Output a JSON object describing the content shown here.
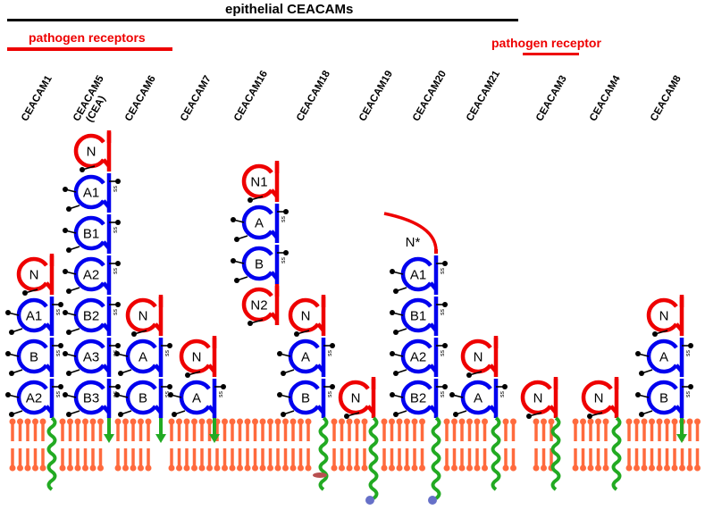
{
  "headers": {
    "epithelial": "epithelial CEACAMs",
    "pathogen_receptors": "pathogen receptors",
    "pathogen_receptor": "pathogen receptor"
  },
  "colors": {
    "n_domain": "#ee0000",
    "ig_domain": "#0000ee",
    "anchor": "#22aa22",
    "membrane": "#ff6a3d",
    "glycan": "#000000",
    "gpi_dot": "#6670c8",
    "ceacam18_tail": "#b85050"
  },
  "proteins": [
    {
      "name": "CEACAM1",
      "sub": "",
      "anchor": "transmembrane",
      "domains": [
        "N",
        "A1",
        "B",
        "A2"
      ]
    },
    {
      "name": "CEACAM5",
      "sub": "(CEA)",
      "anchor": "gpi",
      "domains": [
        "N",
        "A1",
        "B1",
        "A2",
        "B2",
        "A3",
        "B3"
      ]
    },
    {
      "name": "CEACAM6",
      "sub": "",
      "anchor": "gpi",
      "domains": [
        "N",
        "A",
        "B"
      ]
    },
    {
      "name": "CEACAM7",
      "sub": "",
      "anchor": "gpi",
      "domains": [
        "N",
        "A"
      ]
    },
    {
      "name": "CEACAM16",
      "sub": "",
      "anchor": "none",
      "domains": [
        "N1",
        "A",
        "B",
        "N2"
      ]
    },
    {
      "name": "CEACAM18",
      "sub": "",
      "anchor": "transmembrane",
      "domains": [
        "N",
        "A",
        "B"
      ]
    },
    {
      "name": "CEACAM19",
      "sub": "",
      "anchor": "transmembrane",
      "domains": [
        "N"
      ]
    },
    {
      "name": "CEACAM20",
      "sub": "",
      "anchor": "transmembrane",
      "domains": [
        "N*",
        "A1",
        "B1",
        "A2",
        "B2"
      ]
    },
    {
      "name": "CEACAM21",
      "sub": "",
      "anchor": "transmembrane",
      "domains": [
        "N",
        "A"
      ]
    },
    {
      "name": "CEACAM3",
      "sub": "",
      "anchor": "transmembrane",
      "domains": [
        "N"
      ]
    },
    {
      "name": "CEACAM4",
      "sub": "",
      "anchor": "transmembrane",
      "domains": [
        "N"
      ]
    },
    {
      "name": "CEACAM8",
      "sub": "",
      "anchor": "gpi",
      "domains": [
        "N",
        "A",
        "B"
      ]
    }
  ]
}
